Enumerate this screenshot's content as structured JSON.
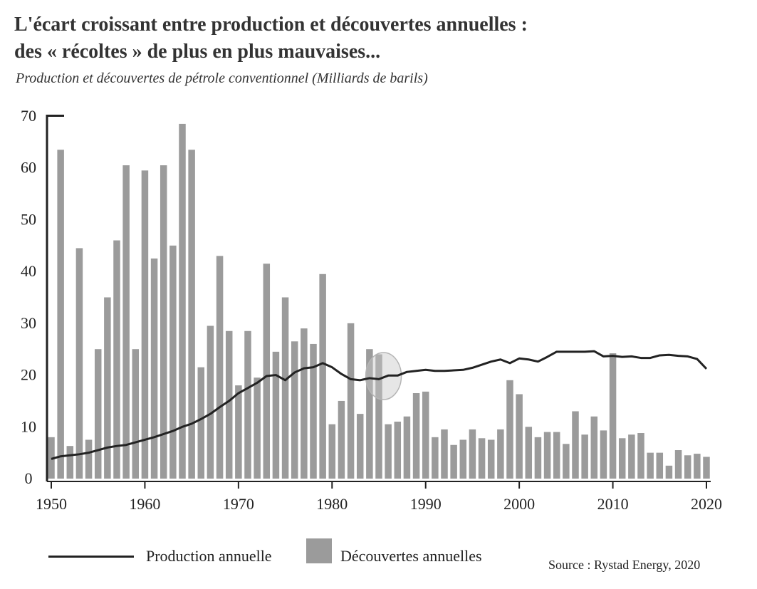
{
  "title_line1": "L'écart croissant entre production et découvertes annuelles :",
  "title_line2": "des « récoltes » de plus en plus mauvaises...",
  "subtitle": "Production et découvertes de pétrole conventionnel (Milliards de barils)",
  "source": "Source : Rystad Energy, 2020",
  "colors": {
    "bars": "#9b9b9b",
    "line": "#222222",
    "axis": "#222222",
    "highlight": "#c8c8c8"
  },
  "chart_data": {
    "type": "bar",
    "title": "",
    "xlabel": "",
    "ylabel": "",
    "ylim": [
      0,
      70
    ],
    "xlim": [
      1950,
      2020
    ],
    "yticks": [
      0,
      10,
      20,
      30,
      40,
      50,
      60,
      70
    ],
    "xticks": [
      1950,
      1960,
      1970,
      1980,
      1990,
      2000,
      2010,
      2020
    ],
    "grid": false,
    "legend_position": "bottom",
    "x": [
      1950,
      1951,
      1952,
      1953,
      1954,
      1955,
      1956,
      1957,
      1958,
      1959,
      1960,
      1961,
      1962,
      1963,
      1964,
      1965,
      1966,
      1967,
      1968,
      1969,
      1970,
      1971,
      1972,
      1973,
      1974,
      1975,
      1976,
      1977,
      1978,
      1979,
      1980,
      1981,
      1982,
      1983,
      1984,
      1985,
      1986,
      1987,
      1988,
      1989,
      1990,
      1991,
      1992,
      1993,
      1994,
      1995,
      1996,
      1997,
      1998,
      1999,
      2000,
      2001,
      2002,
      2003,
      2004,
      2005,
      2006,
      2007,
      2008,
      2009,
      2010,
      2011,
      2012,
      2013,
      2014,
      2015,
      2016,
      2017,
      2018,
      2019,
      2020
    ],
    "series": [
      {
        "name": "Découvertes annuelles",
        "kind": "bar",
        "values": [
          8,
          63.5,
          6.3,
          44.5,
          7.5,
          25,
          35,
          46,
          60.5,
          25,
          59.5,
          42.5,
          60.5,
          45,
          68.5,
          63.5,
          21.5,
          29.5,
          43,
          28.5,
          18,
          28.5,
          19.5,
          41.5,
          24.5,
          35,
          26.5,
          29,
          26,
          39.5,
          10.5,
          15,
          30,
          12.5,
          25,
          24,
          10.5,
          11,
          12,
          16.5,
          16.8,
          8,
          9.5,
          6.5,
          7.5,
          9.5,
          7.8,
          7.5,
          9.5,
          19,
          16.3,
          10,
          8,
          9,
          9,
          6.7,
          13,
          8.5,
          12,
          9.3,
          24.2,
          7.8,
          8.5,
          8.8,
          5,
          5,
          2.5,
          5.5,
          4.5,
          4.8,
          4.2
        ]
      },
      {
        "name": "Production annuelle",
        "kind": "line",
        "values": [
          3.8,
          4.3,
          4.5,
          4.7,
          5,
          5.5,
          6,
          6.3,
          6.5,
          7,
          7.5,
          8,
          8.6,
          9.2,
          10,
          10.6,
          11.5,
          12.5,
          13.8,
          15,
          16.5,
          17.5,
          18.5,
          19.8,
          20,
          19,
          20.5,
          21.3,
          21.5,
          22.3,
          21.5,
          20.2,
          19.2,
          19,
          19.4,
          19.2,
          19.9,
          19.9,
          20.6,
          20.8,
          21,
          20.8,
          20.8,
          20.9,
          21,
          21.4,
          22,
          22.6,
          23,
          22.3,
          23.2,
          23,
          22.6,
          23.5,
          24.5,
          24.5,
          24.5,
          24.5,
          24.6,
          23.6,
          23.7,
          23.5,
          23.6,
          23.3,
          23.3,
          23.8,
          23.9,
          23.7,
          23.6,
          23.1,
          21.2
        ]
      }
    ],
    "annotations": [
      {
        "type": "ellipse-highlight",
        "x": 1985.5,
        "y": 19.8
      }
    ]
  }
}
